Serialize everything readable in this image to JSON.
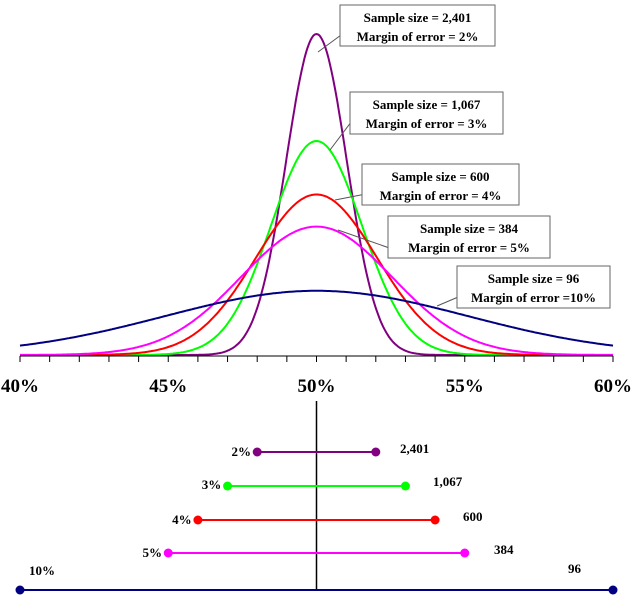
{
  "chart_data": {
    "type": "line",
    "xlim": [
      40,
      60
    ],
    "x_tick_labels": [
      "40%",
      "45%",
      "50%",
      "55%",
      "60%"
    ],
    "x_ticks_minor_step": 1,
    "center": 50,
    "grid": false,
    "series": [
      {
        "sample_size": "2,401",
        "moe": 2,
        "moe_label": "2%",
        "box_line1": "Sample size = 2,401",
        "box_line2": "Margin of error = 2%",
        "color": "#800080"
      },
      {
        "sample_size": "1,067",
        "moe": 3,
        "moe_label": "3%",
        "box_line1": "Sample size = 1,067",
        "box_line2": "Margin of error = 3%",
        "color": "#00ff00"
      },
      {
        "sample_size": "600",
        "moe": 4,
        "moe_label": "4%",
        "box_line1": "Sample size = 600",
        "box_line2": "Margin of error = 4%",
        "color": "#ff0000"
      },
      {
        "sample_size": "384",
        "moe": 5,
        "moe_label": "5%",
        "box_line1": "Sample size = 384",
        "box_line2": "Margin of error = 5%",
        "color": "#ff00ff"
      },
      {
        "sample_size": "96",
        "moe": 10,
        "moe_label": "10%",
        "box_line1": "Sample size = 96",
        "box_line2": "Margin of error =10%",
        "color": "#000080"
      }
    ]
  }
}
